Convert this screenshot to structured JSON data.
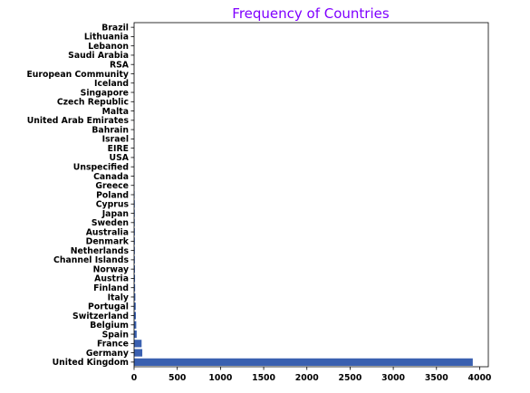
{
  "chart_data": {
    "type": "bar",
    "orientation": "horizontal",
    "title": "Frequency of Countries",
    "title_color": "#7f00ff",
    "bar_color": "#3a60b0",
    "xlabel": "",
    "ylabel": "",
    "xlim": [
      0,
      4100
    ],
    "xticks": [
      0,
      500,
      1000,
      1500,
      2000,
      2500,
      3000,
      3500,
      4000
    ],
    "grid": false,
    "categories": [
      "United Kingdom",
      "Germany",
      "France",
      "Spain",
      "Belgium",
      "Switzerland",
      "Portugal",
      "Italy",
      "Finland",
      "Austria",
      "Norway",
      "Channel Islands",
      "Netherlands",
      "Denmark",
      "Australia",
      "Sweden",
      "Japan",
      "Cyprus",
      "Poland",
      "Greece",
      "Canada",
      "Unspecified",
      "USA",
      "EIRE",
      "Israel",
      "Bahrain",
      "United Arab Emirates",
      "Malta",
      "Czech Republic",
      "Singapore",
      "Iceland",
      "European Community",
      "RSA",
      "Saudi Arabia",
      "Lebanon",
      "Lithuania",
      "Brazil"
    ],
    "values": [
      3920,
      95,
      87,
      30,
      25,
      21,
      19,
      15,
      12,
      11,
      10,
      9,
      9,
      9,
      9,
      8,
      8,
      8,
      6,
      4,
      4,
      4,
      4,
      3,
      3,
      2,
      2,
      2,
      1,
      1,
      1,
      1,
      1,
      1,
      1,
      1,
      1
    ]
  }
}
